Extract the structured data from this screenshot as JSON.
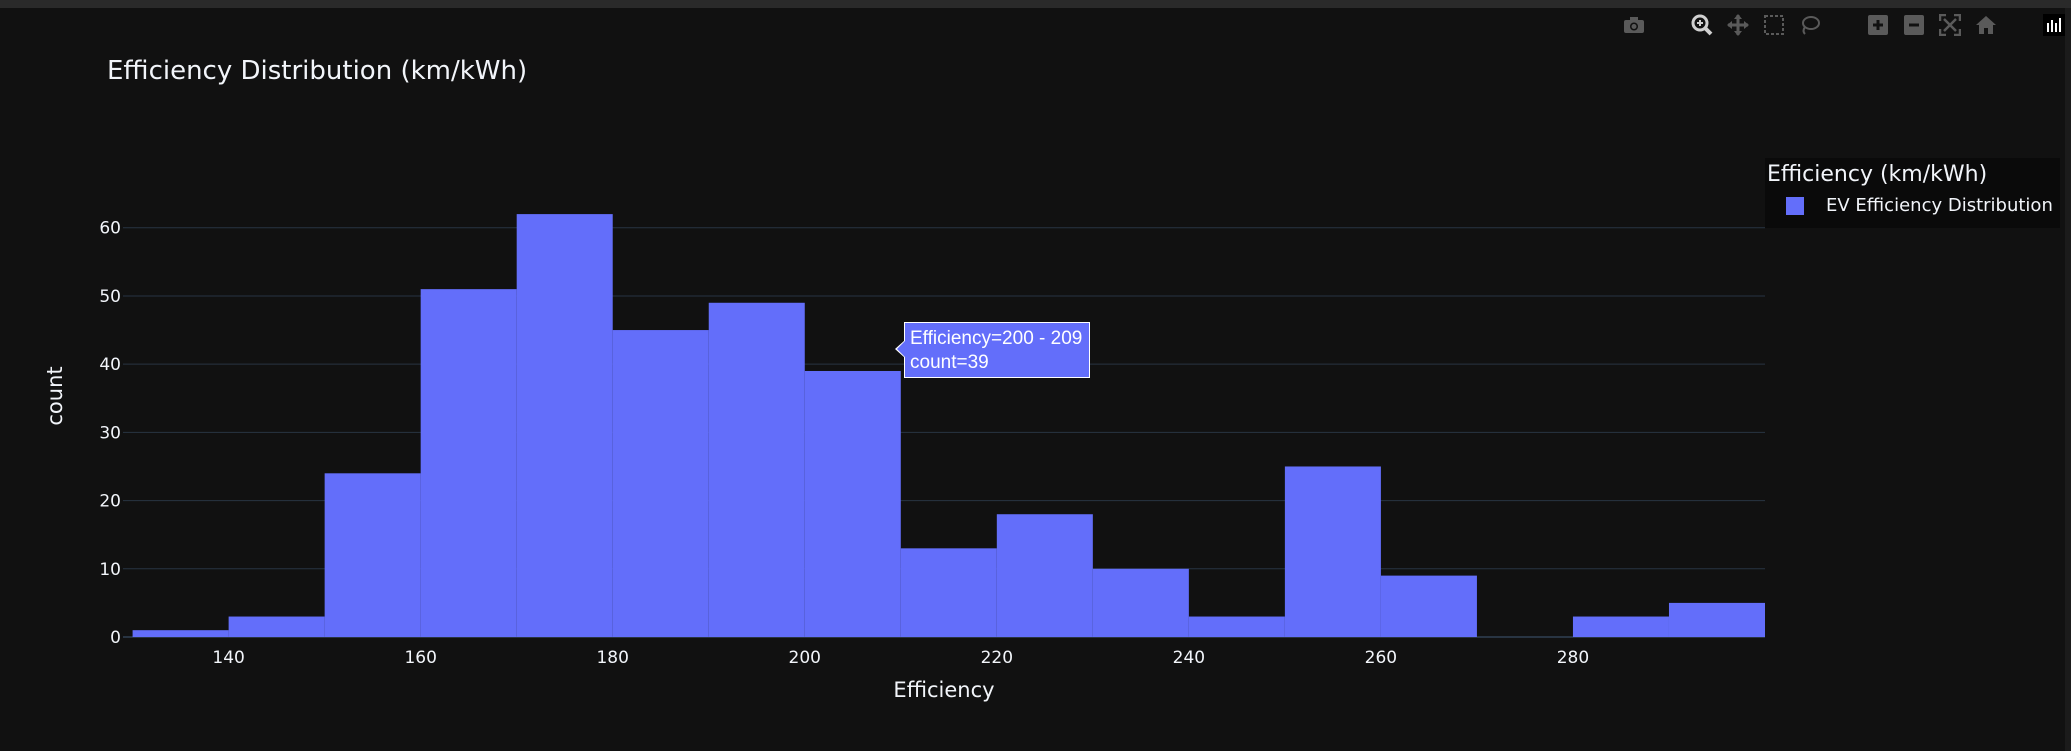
{
  "toolbar": {
    "icons": [
      "camera-icon",
      "zoom-icon",
      "pan-icon",
      "box-select-icon",
      "lasso-select-icon",
      "zoom-in-icon",
      "zoom-out-icon",
      "autoscale-icon",
      "reset-axes-icon",
      "plotly-logo-icon"
    ]
  },
  "legend": {
    "title": "Efficiency (km/kWh)",
    "item_label": "EV Efficiency Distribution",
    "item_color": "#636efa"
  },
  "tooltip": {
    "line1": "Efficiency=200 - 209",
    "line2": "count=39"
  },
  "chart_data": {
    "type": "bar",
    "title": "Efficiency Distribution (km/kWh)",
    "xlabel": "Efficiency",
    "ylabel": "count",
    "bin_size": 10,
    "bin_starts": [
      130,
      140,
      150,
      160,
      170,
      180,
      190,
      200,
      210,
      220,
      230,
      240,
      250,
      260,
      270,
      280,
      290
    ],
    "values": [
      1,
      3,
      24,
      51,
      62,
      45,
      49,
      39,
      13,
      18,
      10,
      3,
      25,
      9,
      0,
      3,
      5
    ],
    "xlim": [
      129,
      300
    ],
    "ylim": [
      0,
      67
    ],
    "x_ticks": [
      140,
      160,
      180,
      200,
      220,
      240,
      260,
      280
    ],
    "y_ticks": [
      0,
      10,
      20,
      30,
      40,
      50,
      60
    ],
    "bar_color": "#636efa",
    "grid": true,
    "background": "#111111",
    "legend_position": "top-right"
  }
}
